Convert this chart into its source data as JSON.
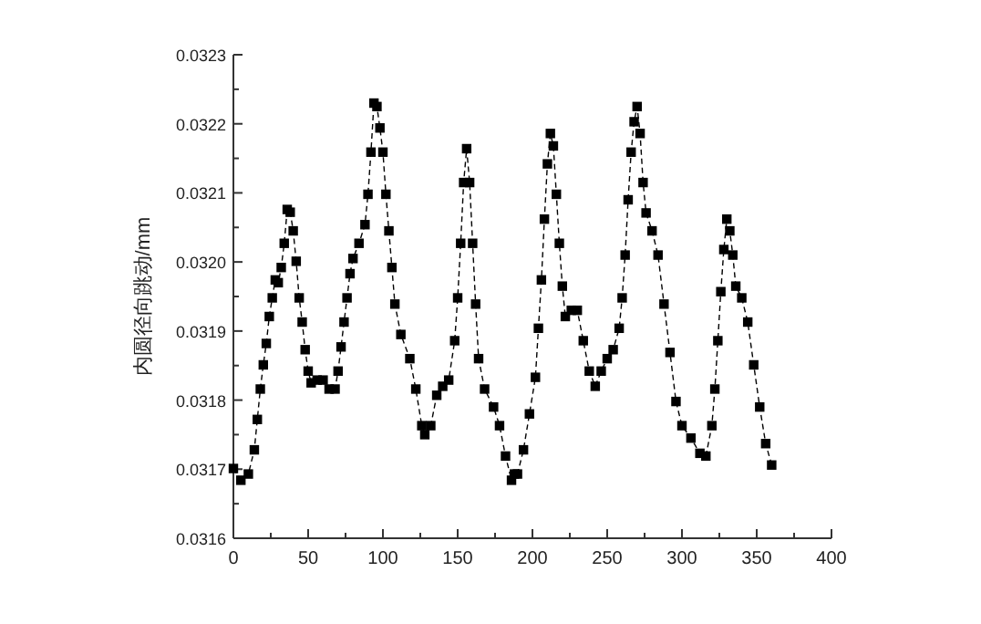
{
  "chart_data": {
    "type": "line",
    "ylabel": "内圆径向跳动/mm",
    "marker": "square",
    "line_style": "dashed",
    "xlim": [
      0,
      400
    ],
    "xticks": [
      0,
      50,
      100,
      150,
      200,
      250,
      300,
      350,
      400
    ],
    "ylim": [
      0.0316,
      0.0323
    ],
    "yticks": [
      0.0316,
      0.0317,
      0.0318,
      0.0319,
      {
        "value": 0.032,
        "label": "0.0320"
      },
      0.0321,
      0.0322,
      0.0323
    ],
    "series": [
      {
        "color": "#000000",
        "x": [
          0,
          5,
          10,
          14,
          16,
          18,
          20,
          22,
          24,
          26,
          28,
          30,
          32,
          34,
          36,
          38,
          40,
          42,
          44,
          46,
          48,
          50,
          52,
          56,
          60,
          64,
          68,
          70,
          72,
          74,
          76,
          78,
          80,
          84,
          88,
          90,
          92,
          94,
          96,
          98,
          100,
          102,
          104,
          106,
          108,
          112,
          118,
          122,
          126,
          128,
          132,
          136,
          140,
          144,
          148,
          150,
          152,
          154,
          156,
          158,
          160,
          162,
          164,
          168,
          174,
          178,
          182,
          186,
          188,
          190,
          194,
          198,
          202,
          204,
          206,
          208,
          210,
          212,
          214,
          216,
          218,
          220,
          222,
          226,
          230,
          234,
          238,
          242,
          246,
          250,
          254,
          258,
          260,
          262,
          264,
          266,
          268,
          270,
          272,
          274,
          276,
          280,
          284,
          288,
          292,
          296,
          300,
          306,
          312,
          316,
          320,
          322,
          324,
          326,
          328,
          330,
          332,
          334,
          336,
          340,
          344,
          348,
          352,
          356,
          360
        ],
        "values": [
          0.031701,
          0.031684,
          0.031693,
          0.031728,
          0.031772,
          0.031816,
          0.031851,
          0.031882,
          0.031921,
          0.031948,
          0.031974,
          0.03197,
          0.031992,
          0.032027,
          0.032076,
          0.032072,
          0.032045,
          0.032001,
          0.031948,
          0.031913,
          0.031873,
          0.031842,
          0.031825,
          0.031829,
          0.031829,
          0.031816,
          0.031816,
          0.031842,
          0.031877,
          0.031913,
          0.031948,
          0.031983,
          0.032005,
          0.032027,
          0.032054,
          0.032098,
          0.032159,
          0.03223,
          0.032225,
          0.032194,
          0.032159,
          0.032098,
          0.032045,
          0.031992,
          0.031939,
          0.031895,
          0.03186,
          0.031816,
          0.031763,
          0.03175,
          0.031763,
          0.031807,
          0.03182,
          0.031829,
          0.031886,
          0.031948,
          0.032027,
          0.032115,
          0.032164,
          0.032115,
          0.032027,
          0.031939,
          0.03186,
          0.031816,
          0.03179,
          0.031763,
          0.031719,
          0.031684,
          0.031693,
          0.031693,
          0.031728,
          0.03178,
          0.031833,
          0.031904,
          0.031974,
          0.032062,
          0.032142,
          0.032186,
          0.032168,
          0.032098,
          0.032027,
          0.031965,
          0.031921,
          0.03193,
          0.03193,
          0.031886,
          0.031842,
          0.03182,
          0.031842,
          0.03186,
          0.031873,
          0.031904,
          0.031948,
          0.03201,
          0.03209,
          0.032159,
          0.032203,
          0.032225,
          0.032186,
          0.032115,
          0.032071,
          0.032045,
          0.03201,
          0.031939,
          0.031869,
          0.031798,
          0.031763,
          0.031745,
          0.031723,
          0.031719,
          0.031763,
          0.031816,
          0.031886,
          0.031957,
          0.032018,
          0.032062,
          0.032045,
          0.03201,
          0.031965,
          0.031948,
          0.031913,
          0.031851,
          0.03179,
          0.031737,
          0.031706
        ]
      }
    ]
  }
}
